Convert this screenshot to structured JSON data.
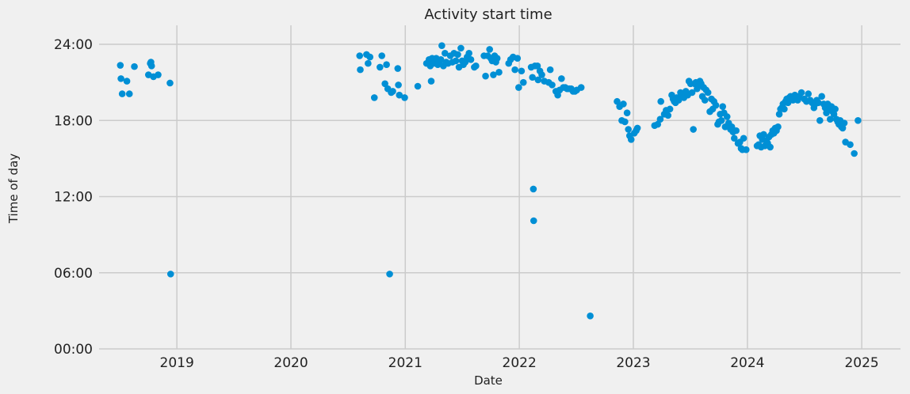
{
  "chart_data": {
    "type": "scatter",
    "title": "Activity start time",
    "xlabel": "Date",
    "ylabel": "Time of day",
    "x_axis": {
      "kind": "date",
      "range": [
        "2018-04-27",
        "2025-05-05"
      ],
      "ticks": [
        "2019-01-01",
        "2020-01-01",
        "2021-01-01",
        "2022-01-01",
        "2023-01-01",
        "2024-01-01",
        "2025-01-01"
      ],
      "tick_labels": [
        "2019",
        "2020",
        "2021",
        "2022",
        "2023",
        "2024",
        "2025"
      ]
    },
    "y_axis": {
      "unit": "hours",
      "range": [
        0,
        25.5
      ],
      "ticks": [
        0,
        6,
        12,
        18,
        24
      ],
      "tick_labels": [
        "00:00",
        "06:00",
        "12:00",
        "18:00",
        "24:00"
      ]
    },
    "grid": true,
    "marker_color": "#008fd5",
    "points": [
      [
        "2018-07-04",
        22.35
      ],
      [
        "2018-07-06",
        21.3
      ],
      [
        "2018-07-10",
        20.1
      ],
      [
        "2018-07-25",
        21.1
      ],
      [
        "2018-08-02",
        20.1
      ],
      [
        "2018-08-18",
        22.25
      ],
      [
        "2018-10-02",
        21.6
      ],
      [
        "2018-10-08",
        22.5
      ],
      [
        "2018-10-10",
        22.6
      ],
      [
        "2018-10-12",
        22.3
      ],
      [
        "2018-10-18",
        21.45
      ],
      [
        "2018-11-02",
        21.6
      ],
      [
        "2018-12-10",
        20.95
      ],
      [
        "2018-12-12",
        5.9
      ],
      [
        "2020-08-08",
        23.1
      ],
      [
        "2020-08-10",
        22.0
      ],
      [
        "2020-08-30",
        23.2
      ],
      [
        "2020-09-04",
        22.5
      ],
      [
        "2020-09-10",
        23.0
      ],
      [
        "2020-09-24",
        19.8
      ],
      [
        "2020-10-12",
        22.2
      ],
      [
        "2020-10-18",
        23.1
      ],
      [
        "2020-10-28",
        20.9
      ],
      [
        "2020-11-02",
        22.4
      ],
      [
        "2020-11-06",
        20.5
      ],
      [
        "2020-11-12",
        5.9
      ],
      [
        "2020-11-17",
        20.2
      ],
      [
        "2020-11-22",
        20.3
      ],
      [
        "2020-12-08",
        22.1
      ],
      [
        "2020-12-10",
        20.8
      ],
      [
        "2020-12-13",
        20.0
      ],
      [
        "2020-12-30",
        19.8
      ],
      [
        "2021-02-10",
        20.7
      ],
      [
        "2021-03-10",
        22.5
      ],
      [
        "2021-03-18",
        22.8
      ],
      [
        "2021-03-22",
        22.3
      ],
      [
        "2021-03-25",
        21.1
      ],
      [
        "2021-03-28",
        22.9
      ],
      [
        "2021-04-02",
        22.5
      ],
      [
        "2021-04-06",
        22.7
      ],
      [
        "2021-04-10",
        22.9
      ],
      [
        "2021-04-15",
        22.4
      ],
      [
        "2021-04-20",
        22.6
      ],
      [
        "2021-04-25",
        22.8
      ],
      [
        "2021-04-28",
        23.9
      ],
      [
        "2021-05-03",
        22.3
      ],
      [
        "2021-05-08",
        23.3
      ],
      [
        "2021-05-12",
        22.6
      ],
      [
        "2021-05-18",
        22.5
      ],
      [
        "2021-05-25",
        23.1
      ],
      [
        "2021-06-01",
        22.6
      ],
      [
        "2021-06-06",
        23.3
      ],
      [
        "2021-06-12",
        22.7
      ],
      [
        "2021-06-18",
        23.2
      ],
      [
        "2021-06-22",
        22.2
      ],
      [
        "2021-06-28",
        23.7
      ],
      [
        "2021-07-02",
        22.7
      ],
      [
        "2021-07-06",
        22.4
      ],
      [
        "2021-07-12",
        22.6
      ],
      [
        "2021-07-18",
        23.0
      ],
      [
        "2021-07-24",
        23.3
      ],
      [
        "2021-07-30",
        22.8
      ],
      [
        "2021-08-10",
        22.2
      ],
      [
        "2021-08-15",
        22.3
      ],
      [
        "2021-09-10",
        23.1
      ],
      [
        "2021-09-15",
        21.5
      ],
      [
        "2021-09-22",
        23.1
      ],
      [
        "2021-09-28",
        23.6
      ],
      [
        "2021-10-02",
        22.9
      ],
      [
        "2021-10-06",
        22.7
      ],
      [
        "2021-10-10",
        21.6
      ],
      [
        "2021-10-14",
        23.1
      ],
      [
        "2021-10-18",
        22.6
      ],
      [
        "2021-10-22",
        22.9
      ],
      [
        "2021-10-28",
        21.8
      ],
      [
        "2021-11-28",
        22.5
      ],
      [
        "2021-12-04",
        22.8
      ],
      [
        "2021-12-12",
        23.0
      ],
      [
        "2021-12-18",
        22.0
      ],
      [
        "2021-12-26",
        22.9
      ],
      [
        "2021-12-30",
        20.6
      ],
      [
        "2022-01-08",
        21.9
      ],
      [
        "2022-01-14",
        21.0
      ],
      [
        "2022-02-08",
        22.2
      ],
      [
        "2022-02-12",
        21.4
      ],
      [
        "2022-02-15",
        12.6
      ],
      [
        "2022-02-16",
        10.1
      ],
      [
        "2022-02-20",
        22.3
      ],
      [
        "2022-02-28",
        22.3
      ],
      [
        "2022-03-02",
        21.2
      ],
      [
        "2022-03-08",
        21.9
      ],
      [
        "2022-03-14",
        21.6
      ],
      [
        "2022-03-22",
        21.1
      ],
      [
        "2022-04-05",
        21.0
      ],
      [
        "2022-04-10",
        22.0
      ],
      [
        "2022-04-16",
        20.8
      ],
      [
        "2022-04-28",
        20.3
      ],
      [
        "2022-05-04",
        20.0
      ],
      [
        "2022-05-10",
        20.4
      ],
      [
        "2022-05-16",
        21.3
      ],
      [
        "2022-05-22",
        20.6
      ],
      [
        "2022-05-28",
        20.6
      ],
      [
        "2022-06-03",
        20.5
      ],
      [
        "2022-06-10",
        20.5
      ],
      [
        "2022-06-16",
        20.5
      ],
      [
        "2022-06-22",
        20.3
      ],
      [
        "2022-06-28",
        20.3
      ],
      [
        "2022-07-04",
        20.4
      ],
      [
        "2022-07-18",
        20.6
      ],
      [
        "2022-08-16",
        2.6
      ],
      [
        "2022-11-10",
        19.5
      ],
      [
        "2022-11-18",
        19.1
      ],
      [
        "2022-11-25",
        18.0
      ],
      [
        "2022-11-30",
        19.3
      ],
      [
        "2022-12-05",
        17.9
      ],
      [
        "2022-12-12",
        18.6
      ],
      [
        "2022-12-16",
        17.3
      ],
      [
        "2022-12-20",
        16.8
      ],
      [
        "2022-12-25",
        16.5
      ],
      [
        "2023-01-04",
        17.0
      ],
      [
        "2023-01-10",
        17.2
      ],
      [
        "2023-01-14",
        17.4
      ],
      [
        "2023-03-10",
        17.6
      ],
      [
        "2023-03-20",
        17.7
      ],
      [
        "2023-03-28",
        18.1
      ],
      [
        "2023-03-30",
        19.5
      ],
      [
        "2023-04-10",
        18.5
      ],
      [
        "2023-04-16",
        18.8
      ],
      [
        "2023-04-22",
        18.4
      ],
      [
        "2023-04-28",
        18.9
      ],
      [
        "2023-05-04",
        20.0
      ],
      [
        "2023-05-08",
        19.7
      ],
      [
        "2023-05-12",
        19.5
      ],
      [
        "2023-05-16",
        19.4
      ],
      [
        "2023-05-20",
        19.8
      ],
      [
        "2023-05-26",
        19.6
      ],
      [
        "2023-06-01",
        20.2
      ],
      [
        "2023-06-06",
        19.9
      ],
      [
        "2023-06-12",
        19.8
      ],
      [
        "2023-06-18",
        20.3
      ],
      [
        "2023-06-24",
        20.0
      ],
      [
        "2023-06-28",
        21.1
      ],
      [
        "2023-07-03",
        20.9
      ],
      [
        "2023-07-08",
        20.2
      ],
      [
        "2023-07-12",
        17.3
      ],
      [
        "2023-07-16",
        20.9
      ],
      [
        "2023-07-20",
        21.0
      ],
      [
        "2023-07-24",
        20.5
      ],
      [
        "2023-07-28",
        20.7
      ],
      [
        "2023-08-02",
        21.1
      ],
      [
        "2023-08-06",
        20.9
      ],
      [
        "2023-08-10",
        19.9
      ],
      [
        "2023-08-14",
        20.6
      ],
      [
        "2023-08-18",
        19.6
      ],
      [
        "2023-08-22",
        20.4
      ],
      [
        "2023-08-28",
        20.2
      ],
      [
        "2023-09-03",
        18.7
      ],
      [
        "2023-09-08",
        19.7
      ],
      [
        "2023-09-12",
        18.9
      ],
      [
        "2023-09-16",
        19.5
      ],
      [
        "2023-09-22",
        19.2
      ],
      [
        "2023-09-28",
        17.7
      ],
      [
        "2023-10-02",
        17.9
      ],
      [
        "2023-10-06",
        18.5
      ],
      [
        "2023-10-10",
        18.0
      ],
      [
        "2023-10-14",
        19.1
      ],
      [
        "2023-10-18",
        18.6
      ],
      [
        "2023-10-22",
        17.5
      ],
      [
        "2023-10-28",
        18.3
      ],
      [
        "2023-11-02",
        17.8
      ],
      [
        "2023-11-08",
        17.3
      ],
      [
        "2023-11-12",
        17.5
      ],
      [
        "2023-11-16",
        17.1
      ],
      [
        "2023-11-20",
        16.6
      ],
      [
        "2023-11-26",
        17.2
      ],
      [
        "2023-12-02",
        16.2
      ],
      [
        "2023-12-08",
        16.3
      ],
      [
        "2023-12-12",
        15.8
      ],
      [
        "2023-12-16",
        15.7
      ],
      [
        "2023-12-20",
        16.6
      ],
      [
        "2023-12-28",
        15.7
      ],
      [
        "2024-02-01",
        16.0
      ],
      [
        "2024-02-06",
        16.1
      ],
      [
        "2024-02-10",
        16.8
      ],
      [
        "2024-02-14",
        15.9
      ],
      [
        "2024-02-18",
        16.5
      ],
      [
        "2024-02-22",
        16.9
      ],
      [
        "2024-02-26",
        16.0
      ],
      [
        "2024-03-02",
        16.4
      ],
      [
        "2024-03-06",
        16.2
      ],
      [
        "2024-03-10",
        16.7
      ],
      [
        "2024-03-14",
        15.9
      ],
      [
        "2024-03-18",
        16.9
      ],
      [
        "2024-03-22",
        17.2
      ],
      [
        "2024-03-26",
        17.0
      ],
      [
        "2024-03-30",
        17.4
      ],
      [
        "2024-04-03",
        17.2
      ],
      [
        "2024-04-08",
        17.5
      ],
      [
        "2024-04-12",
        18.5
      ],
      [
        "2024-04-16",
        18.9
      ],
      [
        "2024-04-20",
        19.0
      ],
      [
        "2024-04-24",
        19.3
      ],
      [
        "2024-04-28",
        18.9
      ],
      [
        "2024-05-02",
        19.5
      ],
      [
        "2024-05-06",
        19.7
      ],
      [
        "2024-05-10",
        19.4
      ],
      [
        "2024-05-14",
        19.8
      ],
      [
        "2024-05-18",
        19.9
      ],
      [
        "2024-05-22",
        19.7
      ],
      [
        "2024-05-26",
        19.6
      ],
      [
        "2024-06-01",
        20.0
      ],
      [
        "2024-06-05",
        19.8
      ],
      [
        "2024-06-10",
        19.6
      ],
      [
        "2024-06-15",
        19.9
      ],
      [
        "2024-06-22",
        20.2
      ],
      [
        "2024-07-01",
        19.7
      ],
      [
        "2024-07-08",
        19.5
      ],
      [
        "2024-07-14",
        20.1
      ],
      [
        "2024-07-20",
        19.6
      ],
      [
        "2024-07-26",
        19.4
      ],
      [
        "2024-08-01",
        19.0
      ],
      [
        "2024-08-05",
        19.3
      ],
      [
        "2024-08-10",
        19.6
      ],
      [
        "2024-08-15",
        19.4
      ],
      [
        "2024-08-20",
        18.0
      ],
      [
        "2024-08-26",
        19.9
      ],
      [
        "2024-09-01",
        19.3
      ],
      [
        "2024-09-06",
        19.0
      ],
      [
        "2024-09-10",
        18.6
      ],
      [
        "2024-09-14",
        19.3
      ],
      [
        "2024-09-18",
        18.9
      ],
      [
        "2024-09-22",
        18.1
      ],
      [
        "2024-09-26",
        19.1
      ],
      [
        "2024-09-30",
        18.7
      ],
      [
        "2024-10-04",
        18.5
      ],
      [
        "2024-10-08",
        18.9
      ],
      [
        "2024-10-12",
        18.1
      ],
      [
        "2024-10-16",
        17.9
      ],
      [
        "2024-10-20",
        17.7
      ],
      [
        "2024-10-24",
        18.0
      ],
      [
        "2024-10-28",
        17.5
      ],
      [
        "2024-11-01",
        17.4
      ],
      [
        "2024-11-06",
        17.8
      ],
      [
        "2024-11-10",
        16.3
      ],
      [
        "2024-11-25",
        16.1
      ],
      [
        "2024-12-08",
        15.4
      ],
      [
        "2024-12-20",
        18.0
      ]
    ]
  }
}
